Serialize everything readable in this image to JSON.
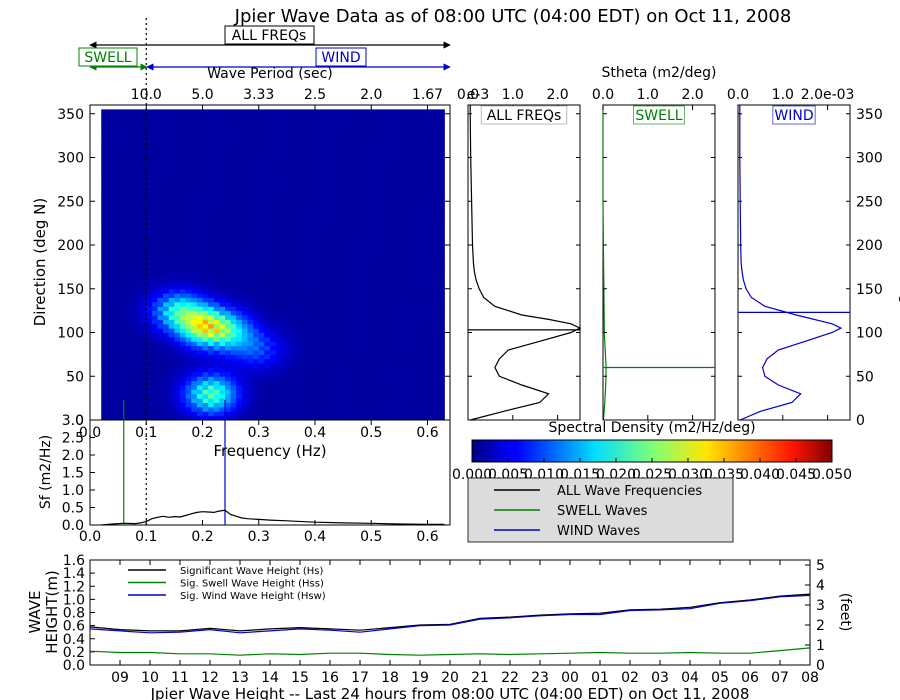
{
  "title": "Jpier Wave Data as of 08:00 UTC (04:00 EDT) on Oct 11, 2008",
  "band_labels": {
    "all": "ALL FREQs",
    "swell": "SWELL",
    "wind": "WIND"
  },
  "colors": {
    "all": "#000000",
    "swell": "#008000",
    "wind": "#0000cc"
  },
  "chart_data": [
    {
      "id": "directional-spectrum",
      "type": "heatmap",
      "xlabel": "Frequency (Hz)",
      "ylabel": "Direction (deg N)",
      "top_axis_label": "Wave Period (sec)",
      "top_ticks": [
        "10.0",
        "5.0",
        "3.33",
        "2.5",
        "2.0",
        "1.67"
      ],
      "top_tick_freqs": [
        0.1,
        0.2,
        0.3,
        0.4,
        0.5,
        0.6
      ],
      "xlim": [
        0.0,
        0.64
      ],
      "ylim": [
        0,
        360
      ],
      "xticks": [
        0.0,
        0.1,
        0.2,
        0.3,
        0.4,
        0.5,
        0.6
      ],
      "xtick_labels": [
        "0.0",
        "0.1",
        "0.2",
        "0.3",
        "0.4",
        "0.5",
        "0.6"
      ],
      "yticks": [
        0,
        50,
        100,
        150,
        200,
        250,
        300,
        350
      ],
      "ytick_labels": [
        "0",
        "50",
        "100",
        "150",
        "200",
        "250",
        "300",
        "350"
      ],
      "freq_range": [
        0.02,
        0.63
      ],
      "dir_range": [
        0,
        355
      ],
      "peaks": [
        {
          "f": 0.205,
          "dir": 108,
          "value": 0.024
        },
        {
          "f": 0.155,
          "dir": 125,
          "value": 0.016
        },
        {
          "f": 0.215,
          "dir": 30,
          "value": 0.02
        },
        {
          "f": 0.25,
          "dir": 100,
          "value": 0.012
        },
        {
          "f": 0.3,
          "dir": 80,
          "value": 0.007
        }
      ],
      "divider_freq": 0.1
    },
    {
      "id": "colorbar",
      "type": "colorbar",
      "label": "Spectral Density (m2/Hz/deg)",
      "range": [
        0.0,
        0.05
      ],
      "ticks": [
        "0.000",
        "0.005",
        "0.010",
        "0.015",
        "0.020",
        "0.025",
        "0.030",
        "0.035",
        "0.040",
        "0.045",
        "0.050"
      ]
    },
    {
      "id": "frequency-spectrum",
      "type": "line",
      "ylabel": "Sf (m2/Hz)",
      "xlim": [
        0.0,
        0.64
      ],
      "ylim": [
        0.0,
        3.0
      ],
      "xticks": [
        0.0,
        0.1,
        0.2,
        0.3,
        0.4,
        0.5,
        0.6
      ],
      "xtick_labels": [
        "0.0",
        "0.1",
        "0.2",
        "0.3",
        "0.4",
        "0.5",
        "0.6"
      ],
      "yticks": [
        0.0,
        0.5,
        1.0,
        1.5,
        2.0,
        2.5,
        3.0
      ],
      "ytick_labels": [
        "0.0",
        "0.5",
        "1.0",
        "1.5",
        "2.0",
        "2.5",
        "3.0"
      ],
      "x": [
        0.02,
        0.04,
        0.06,
        0.08,
        0.09,
        0.1,
        0.11,
        0.12,
        0.13,
        0.14,
        0.15,
        0.16,
        0.17,
        0.18,
        0.19,
        0.2,
        0.21,
        0.22,
        0.23,
        0.24,
        0.25,
        0.26,
        0.27,
        0.28,
        0.3,
        0.32,
        0.35,
        0.4,
        0.45,
        0.5,
        0.55,
        0.6,
        0.63
      ],
      "y": [
        0.0,
        0.03,
        0.05,
        0.04,
        0.06,
        0.1,
        0.18,
        0.22,
        0.25,
        0.22,
        0.24,
        0.23,
        0.27,
        0.32,
        0.36,
        0.38,
        0.37,
        0.36,
        0.4,
        0.42,
        0.3,
        0.25,
        0.2,
        0.18,
        0.16,
        0.14,
        0.12,
        0.08,
        0.06,
        0.05,
        0.03,
        0.02,
        0.02
      ],
      "markers": [
        {
          "name": "swell-peak",
          "f": 0.06,
          "color": "#008000"
        },
        {
          "name": "wind-peak",
          "f": 0.24,
          "color": "#0000cc"
        }
      ],
      "divider_freq": 0.1
    },
    {
      "id": "stheta-all",
      "type": "line",
      "label": "ALL FREQs",
      "xlim": [
        0.0,
        2.5
      ],
      "xticks": [
        "0.0",
        "1.0",
        "2.0"
      ],
      "xtick_values": [
        0.0,
        1.0,
        2.0
      ],
      "ylim": [
        0,
        360
      ],
      "offset_label": "e-3",
      "peak_dir": 103,
      "dir": [
        0,
        10,
        20,
        30,
        40,
        50,
        60,
        70,
        80,
        90,
        100,
        105,
        110,
        115,
        120,
        130,
        140,
        150,
        160,
        170,
        180,
        200,
        250,
        300,
        350,
        360
      ],
      "value": [
        0.05,
        0.8,
        1.6,
        1.8,
        1.2,
        0.7,
        0.6,
        0.7,
        0.9,
        1.6,
        2.3,
        2.5,
        2.3,
        1.8,
        1.2,
        0.6,
        0.35,
        0.25,
        0.18,
        0.14,
        0.12,
        0.1,
        0.08,
        0.06,
        0.05,
        0.05
      ]
    },
    {
      "id": "stheta-swell",
      "type": "line",
      "label": "SWELL",
      "xlim": [
        0.0,
        2.5
      ],
      "xticks": [
        "0.0",
        "1.0",
        "2.0"
      ],
      "xtick_values": [
        0.0,
        1.0,
        2.0
      ],
      "ylim": [
        0,
        360
      ],
      "peak_dir": 60,
      "dir": [
        0,
        20,
        40,
        60,
        80,
        100,
        150,
        200,
        250,
        300,
        360
      ],
      "value": [
        0.01,
        0.04,
        0.06,
        0.07,
        0.05,
        0.03,
        0.02,
        0.01,
        0.0,
        0.0,
        0.0
      ]
    },
    {
      "id": "stheta-wind",
      "type": "line",
      "label": "WIND",
      "xlim": [
        0.0,
        2.5
      ],
      "xticks": [
        "0.0",
        "1.0",
        "2.0e-03"
      ],
      "xtick_values": [
        0.0,
        1.0,
        2.0
      ],
      "ylim": [
        0,
        360
      ],
      "peak_dir": 123,
      "dir": [
        0,
        10,
        20,
        30,
        40,
        50,
        60,
        70,
        80,
        90,
        100,
        105,
        110,
        120,
        130,
        140,
        150,
        160,
        170,
        180,
        200,
        250,
        300,
        350,
        360
      ],
      "value": [
        0.05,
        0.5,
        1.2,
        1.4,
        0.9,
        0.6,
        0.55,
        0.65,
        0.9,
        1.5,
        2.1,
        2.3,
        2.1,
        1.3,
        0.6,
        0.3,
        0.18,
        0.12,
        0.09,
        0.07,
        0.06,
        0.05,
        0.04,
        0.04,
        0.04
      ]
    },
    {
      "id": "wave-height-history",
      "type": "line",
      "title": "Jpier Wave Height -- Last 24 hours from 08:00 UTC (04:00 EDT) on Oct 11, 2008",
      "ylabel": "WAVE HEIGHT(m)",
      "y2label": "(feet)",
      "xticks": [
        "09",
        "10",
        "11",
        "12",
        "13",
        "14",
        "15",
        "16",
        "17",
        "18",
        "19",
        "20",
        "21",
        "22",
        "23",
        "00",
        "01",
        "02",
        "03",
        "04",
        "05",
        "06",
        "07",
        "08"
      ],
      "xlim": [
        0,
        24
      ],
      "ylim": [
        0.0,
        1.6
      ],
      "yticks": [
        0.0,
        0.2,
        0.4,
        0.6,
        0.8,
        1.0,
        1.2,
        1.4,
        1.6
      ],
      "ytick_labels": [
        "0.0",
        "0.2",
        "0.4",
        "0.6",
        "0.8",
        "1.0",
        "1.2",
        "1.4",
        "1.6"
      ],
      "y2ticks": [
        "0",
        "1",
        "2",
        "3",
        "4",
        "5"
      ],
      "y2tick_values": [
        0,
        1,
        2,
        3,
        4,
        5
      ],
      "x": [
        0,
        1,
        2,
        3,
        4,
        5,
        6,
        7,
        8,
        9,
        10,
        11,
        12,
        13,
        14,
        15,
        16,
        17,
        18,
        19,
        20,
        21,
        22,
        23,
        24
      ],
      "series": [
        {
          "name": "Significant Wave Height (Hs)",
          "color": "#000000",
          "values": [
            0.58,
            0.54,
            0.52,
            0.52,
            0.56,
            0.52,
            0.55,
            0.57,
            0.55,
            0.53,
            0.57,
            0.61,
            0.62,
            0.71,
            0.73,
            0.76,
            0.78,
            0.79,
            0.84,
            0.85,
            0.88,
            0.95,
            0.99,
            1.05,
            1.08
          ]
        },
        {
          "name": "Sig. Swell Wave Height (Hss)",
          "color": "#008000",
          "values": [
            0.21,
            0.19,
            0.19,
            0.17,
            0.17,
            0.15,
            0.17,
            0.16,
            0.18,
            0.18,
            0.16,
            0.15,
            0.16,
            0.17,
            0.16,
            0.17,
            0.18,
            0.19,
            0.18,
            0.18,
            0.19,
            0.18,
            0.18,
            0.22,
            0.26
          ]
        },
        {
          "name": "Sig. Wind Wave Height (Hsw)",
          "color": "#0000cc",
          "values": [
            0.55,
            0.52,
            0.49,
            0.5,
            0.54,
            0.49,
            0.52,
            0.55,
            0.53,
            0.5,
            0.55,
            0.6,
            0.61,
            0.7,
            0.72,
            0.75,
            0.77,
            0.77,
            0.83,
            0.84,
            0.86,
            0.94,
            0.98,
            1.04,
            1.06
          ]
        }
      ]
    }
  ],
  "legend": {
    "items": [
      {
        "label": "ALL Wave Frequencies",
        "color": "#000000"
      },
      {
        "label": "SWELL Waves",
        "color": "#008000"
      },
      {
        "label": "WIND Waves",
        "color": "#0000cc"
      }
    ]
  }
}
